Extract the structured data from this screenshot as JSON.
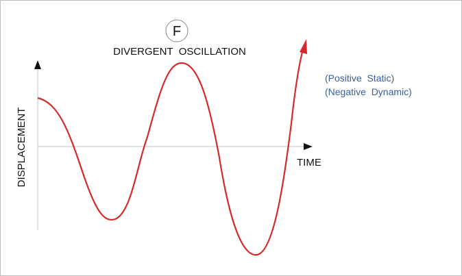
{
  "header": {
    "badge": "F",
    "title": "DIVERGENT  OSCILLATION"
  },
  "axes": {
    "y_label": "DISPLACEMENT",
    "x_label": "TIME"
  },
  "notes": [
    "(Positive  Static)",
    "(Negative  Dynamic)"
  ]
}
